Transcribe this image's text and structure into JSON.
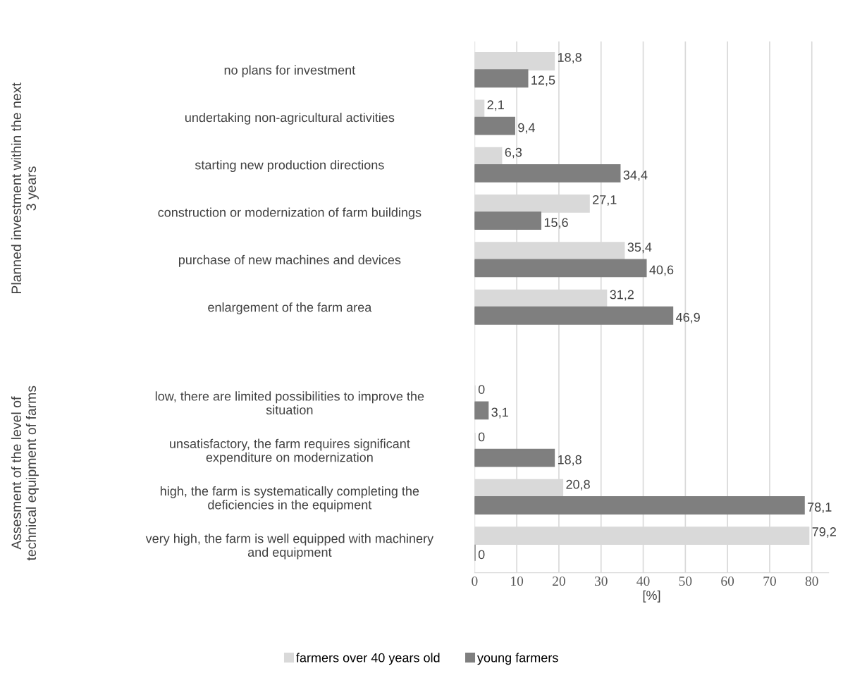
{
  "chart_data": {
    "type": "bar",
    "orientation": "horizontal",
    "xlabel": "[%]",
    "categories": [
      "no plans for investment",
      "undertaking non-agricultural activities",
      "starting new production directions",
      "construction or modernization of farm buildings",
      "purchase of new machines and devices",
      "enlargement of the farm area",
      null,
      "low, there are limited possibilities to improve the\nsituation",
      "unsatisfactory, the farm requires significant\nexpenditure on modernization",
      "high, the farm is systematically completing the\ndeficiencies in the equipment",
      "very high, the farm is well equipped with machinery\nand equipment"
    ],
    "series": [
      {
        "name": "farmers over 40 years old",
        "color": "#d9d9d9",
        "values": [
          18.8,
          2.1,
          6.3,
          27.1,
          35.4,
          31.2,
          null,
          0,
          0,
          20.8,
          79.2
        ],
        "value_labels": [
          "18,8",
          "2,1",
          "6,3",
          "27,1",
          "35,4",
          "31,2",
          null,
          "0",
          "0",
          "20,8",
          "79,2"
        ]
      },
      {
        "name": "young farmers",
        "color": "#7f7f7f",
        "values": [
          12.5,
          9.4,
          34.4,
          15.6,
          40.6,
          46.9,
          null,
          3.1,
          18.8,
          78.1,
          0
        ],
        "value_labels": [
          "12,5",
          "9,4",
          "34,4",
          "15,6",
          "40,6",
          "46,9",
          null,
          "3,1",
          "18,8",
          "78,1",
          "0"
        ]
      }
    ],
    "xlim": [
      0,
      84
    ],
    "xticks": [
      0,
      10,
      20,
      30,
      40,
      50,
      60,
      70,
      80
    ],
    "grid": "x",
    "legend": "bottom",
    "annotations": [
      "Planned investment within the next\n3 years",
      "Assesment of the level of\ntechnical equipment of farms"
    ]
  }
}
